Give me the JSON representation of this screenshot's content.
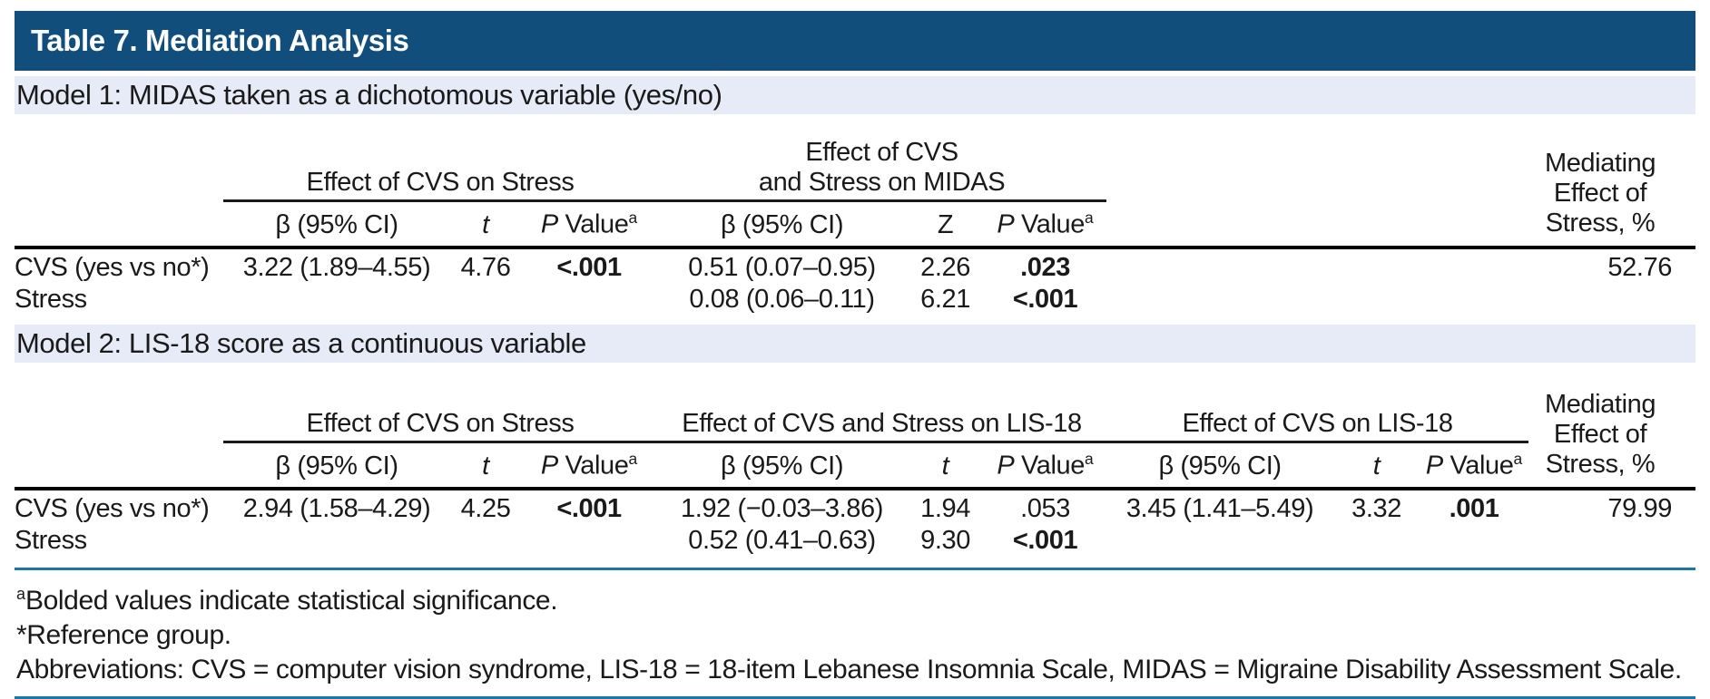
{
  "title": "Table 7. Mediation Analysis",
  "colors": {
    "title_bar_bg": "#114e7b",
    "title_text": "#ffffff",
    "model_band_bg": "#e7ebf7",
    "rule_teal": "#1a77a6",
    "rule_black": "#000000",
    "body_text": "#1a1a1a"
  },
  "headers": {
    "beta_ci": "β (95% CI)",
    "t": "t",
    "z": "Z",
    "p": "P",
    "value": "Value",
    "sup_a": "a"
  },
  "model1": {
    "band": "Model 1: MIDAS taken as a dichotomous variable (yes/no)",
    "group1": "Effect of CVS on Stress",
    "group2_line1": "Effect of CVS",
    "group2_line2": "and Stress on MIDAS",
    "mediating_line1": "Mediating",
    "mediating_line2": "Effect of",
    "mediating_line3": "Stress, %",
    "rows": [
      {
        "label": "CVS (yes vs no*)",
        "beta1": "3.22 (1.89–4.55)",
        "t1": "4.76",
        "p1": "<.001",
        "beta2": "0.51 (0.07–0.95)",
        "z2": "2.26",
        "p2": ".023",
        "mediating": "52.76"
      },
      {
        "label": "Stress",
        "beta1": "",
        "t1": "",
        "p1": "",
        "beta2": "0.08 (0.06–0.11)",
        "z2": "6.21",
        "p2": "<.001",
        "mediating": ""
      }
    ]
  },
  "model2": {
    "band": "Model 2: LIS-18 score as a continuous variable",
    "group1": "Effect of CVS on Stress",
    "group2": "Effect of CVS and Stress on LIS-18",
    "group3": "Effect of CVS on LIS-18",
    "mediating_line1": "Mediating",
    "mediating_line2": "Effect of",
    "mediating_line3": "Stress, %",
    "rows": [
      {
        "label": "CVS (yes vs no*)",
        "beta1": "2.94 (1.58–4.29)",
        "t1": "4.25",
        "p1": "<.001",
        "beta2": "1.92 (−0.03–3.86)",
        "t2": "1.94",
        "p2": ".053",
        "beta3": "3.45 (1.41–5.49)",
        "t3": "3.32",
        "p3": ".001",
        "mediating": "79.99"
      },
      {
        "label": "Stress",
        "beta1": "",
        "t1": "",
        "p1": "",
        "beta2": "0.52 (0.41–0.63)",
        "t2": "9.30",
        "p2": "<.001",
        "beta3": "",
        "t3": "",
        "p3": "",
        "mediating": ""
      }
    ]
  },
  "footnotes": {
    "sup_a": "a",
    "f1": "Bolded values indicate statistical significance.",
    "f2": "*Reference group.",
    "f3": "Abbreviations: CVS = computer vision syndrome, LIS-18 = 18-item Lebanese Insomnia Scale, MIDAS = Migraine Disability Assessment Scale."
  }
}
